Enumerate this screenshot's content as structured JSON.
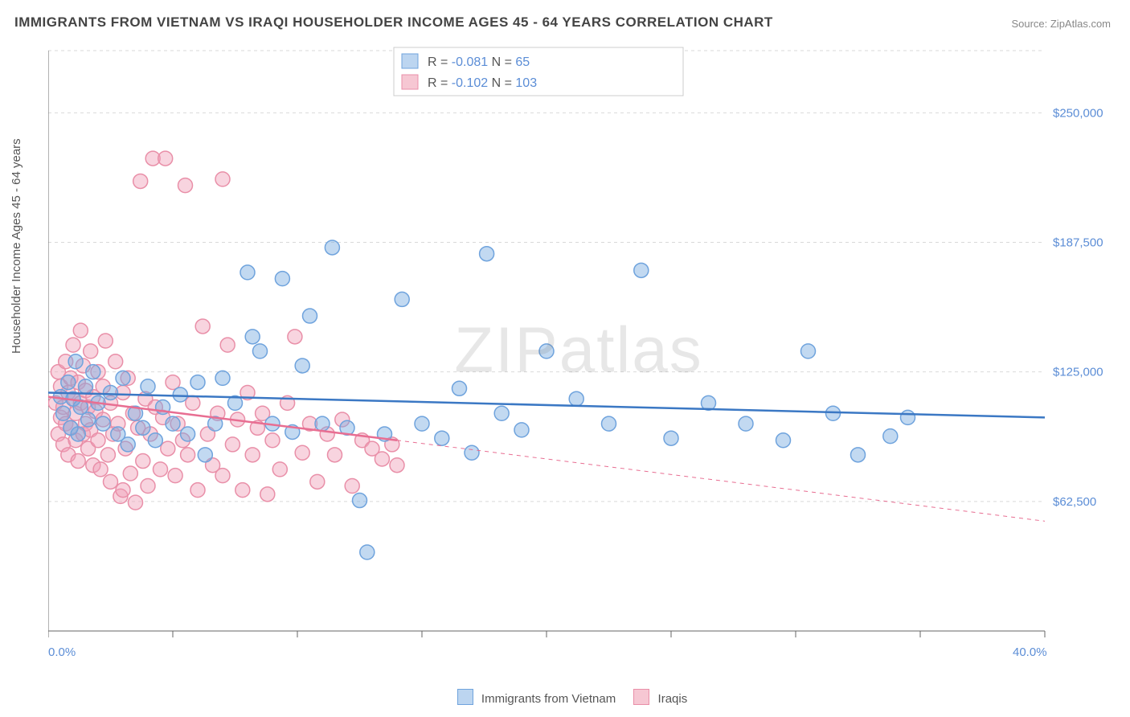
{
  "title": "IMMIGRANTS FROM VIETNAM VS IRAQI HOUSEHOLDER INCOME AGES 45 - 64 YEARS CORRELATION CHART",
  "source": "Source: ZipAtlas.com",
  "watermark": "ZIPatlas",
  "chart": {
    "type": "scatter",
    "background_color": "#ffffff",
    "grid_color": "#d9d9d9",
    "grid_dash": "4,4",
    "axis_color": "#666666",
    "xlim": [
      0,
      40
    ],
    "ylim": [
      0,
      280000
    ],
    "x_ticks": [
      0,
      5,
      10,
      15,
      20,
      25,
      30,
      35,
      40
    ],
    "y_ticks": [
      62500,
      125000,
      187500,
      250000
    ],
    "y_tick_labels": [
      "$62,500",
      "$125,000",
      "$187,500",
      "$250,000"
    ],
    "y_tick_color": "#5b8dd6",
    "x_min_label": "0.0%",
    "x_max_label": "40.0%",
    "x_label_color": "#5b8dd6",
    "ylabel": "Householder Income Ages 45 - 64 years",
    "marker_radius": 9,
    "marker_stroke_width": 1.5,
    "trend_line_width": 2.5,
    "legend_top": {
      "box_fill": "#ffffff",
      "box_stroke": "#cccccc",
      "rows": [
        {
          "swatch_fill": "#bcd5f0",
          "swatch_stroke": "#6fa3dd",
          "r_label": "R =",
          "r_value": "-0.081",
          "n_label": "N =",
          "n_value": "65"
        },
        {
          "swatch_fill": "#f6c7d3",
          "swatch_stroke": "#e98fa8",
          "r_label": "R =",
          "r_value": "-0.102",
          "n_label": "N =",
          "n_value": "103"
        }
      ],
      "text_color": "#555555",
      "value_color": "#5b8dd6"
    },
    "legend_bottom": {
      "items": [
        {
          "swatch_fill": "#bcd5f0",
          "swatch_stroke": "#6fa3dd",
          "label": "Immigrants from Vietnam"
        },
        {
          "swatch_fill": "#f6c7d3",
          "swatch_stroke": "#e98fa8",
          "label": "Iraqis"
        }
      ]
    },
    "series": [
      {
        "name": "Immigrants from Vietnam",
        "color_fill": "rgba(120,170,225,0.45)",
        "color_stroke": "#6fa3dd",
        "trend_color": "#3b78c4",
        "trend": {
          "x1": 0,
          "y1": 115000,
          "x2": 40,
          "y2": 103000
        },
        "points": [
          [
            0.5,
            113000
          ],
          [
            0.6,
            105000
          ],
          [
            0.8,
            120000
          ],
          [
            0.9,
            98000
          ],
          [
            1.0,
            112000
          ],
          [
            1.1,
            130000
          ],
          [
            1.2,
            95000
          ],
          [
            1.3,
            108000
          ],
          [
            1.5,
            118000
          ],
          [
            1.6,
            102000
          ],
          [
            1.8,
            125000
          ],
          [
            2.0,
            110000
          ],
          [
            2.2,
            100000
          ],
          [
            2.5,
            115000
          ],
          [
            2.8,
            95000
          ],
          [
            3.0,
            122000
          ],
          [
            3.2,
            90000
          ],
          [
            3.5,
            105000
          ],
          [
            3.8,
            98000
          ],
          [
            4.0,
            118000
          ],
          [
            4.3,
            92000
          ],
          [
            4.6,
            108000
          ],
          [
            5.0,
            100000
          ],
          [
            5.3,
            114000
          ],
          [
            5.6,
            95000
          ],
          [
            6.0,
            120000
          ],
          [
            6.3,
            85000
          ],
          [
            6.7,
            100000
          ],
          [
            7.0,
            122000
          ],
          [
            7.5,
            110000
          ],
          [
            8.0,
            173000
          ],
          [
            8.2,
            142000
          ],
          [
            8.5,
            135000
          ],
          [
            9.0,
            100000
          ],
          [
            9.4,
            170000
          ],
          [
            9.8,
            96000
          ],
          [
            10.2,
            128000
          ],
          [
            10.5,
            152000
          ],
          [
            11.0,
            100000
          ],
          [
            11.4,
            185000
          ],
          [
            12.0,
            98000
          ],
          [
            12.5,
            63000
          ],
          [
            12.8,
            38000
          ],
          [
            13.5,
            95000
          ],
          [
            14.2,
            160000
          ],
          [
            15.0,
            100000
          ],
          [
            15.8,
            93000
          ],
          [
            16.5,
            117000
          ],
          [
            17.0,
            86000
          ],
          [
            17.6,
            182000
          ],
          [
            18.2,
            105000
          ],
          [
            19.0,
            97000
          ],
          [
            20.0,
            135000
          ],
          [
            21.2,
            112000
          ],
          [
            22.5,
            100000
          ],
          [
            23.8,
            174000
          ],
          [
            25.0,
            93000
          ],
          [
            26.5,
            110000
          ],
          [
            28.0,
            100000
          ],
          [
            29.5,
            92000
          ],
          [
            30.5,
            135000
          ],
          [
            31.5,
            105000
          ],
          [
            32.5,
            85000
          ],
          [
            33.8,
            94000
          ],
          [
            34.5,
            103000
          ]
        ]
      },
      {
        "name": "Iraqis",
        "color_fill": "rgba(240,160,185,0.45)",
        "color_stroke": "#e98fa8",
        "trend_color": "#e86e92",
        "trend": {
          "x1": 0,
          "y1": 113000,
          "x2": 14,
          "y2": 92000
        },
        "trend_ext": {
          "x1": 14,
          "y1": 92000,
          "x2": 40,
          "y2": 53000
        },
        "points": [
          [
            0.3,
            110000
          ],
          [
            0.4,
            95000
          ],
          [
            0.4,
            125000
          ],
          [
            0.5,
            103000
          ],
          [
            0.5,
            118000
          ],
          [
            0.6,
            90000
          ],
          [
            0.6,
            108000
          ],
          [
            0.7,
            130000
          ],
          [
            0.7,
            100000
          ],
          [
            0.8,
            115000
          ],
          [
            0.8,
            85000
          ],
          [
            0.9,
            122000
          ],
          [
            0.9,
            98000
          ],
          [
            1.0,
            112000
          ],
          [
            1.0,
            138000
          ],
          [
            1.1,
            92000
          ],
          [
            1.1,
            105000
          ],
          [
            1.2,
            120000
          ],
          [
            1.2,
            82000
          ],
          [
            1.3,
            110000
          ],
          [
            1.3,
            145000
          ],
          [
            1.4,
            95000
          ],
          [
            1.4,
            128000
          ],
          [
            1.5,
            100000
          ],
          [
            1.5,
            116000
          ],
          [
            1.6,
            88000
          ],
          [
            1.6,
            108000
          ],
          [
            1.7,
            135000
          ],
          [
            1.7,
            97000
          ],
          [
            1.8,
            113000
          ],
          [
            1.8,
            80000
          ],
          [
            1.9,
            106000
          ],
          [
            2.0,
            125000
          ],
          [
            2.0,
            92000
          ],
          [
            2.1,
            78000
          ],
          [
            2.2,
            118000
          ],
          [
            2.2,
            102000
          ],
          [
            2.3,
            140000
          ],
          [
            2.4,
            85000
          ],
          [
            2.5,
            110000
          ],
          [
            2.5,
            72000
          ],
          [
            2.6,
            95000
          ],
          [
            2.7,
            130000
          ],
          [
            2.8,
            100000
          ],
          [
            2.9,
            65000
          ],
          [
            3.0,
            115000
          ],
          [
            3.0,
            68000
          ],
          [
            3.1,
            88000
          ],
          [
            3.2,
            122000
          ],
          [
            3.3,
            76000
          ],
          [
            3.4,
            105000
          ],
          [
            3.5,
            62000
          ],
          [
            3.6,
            98000
          ],
          [
            3.7,
            217000
          ],
          [
            3.8,
            82000
          ],
          [
            3.9,
            112000
          ],
          [
            4.0,
            70000
          ],
          [
            4.1,
            95000
          ],
          [
            4.2,
            228000
          ],
          [
            4.3,
            108000
          ],
          [
            4.5,
            78000
          ],
          [
            4.6,
            103000
          ],
          [
            4.7,
            228000
          ],
          [
            4.8,
            88000
          ],
          [
            5.0,
            120000
          ],
          [
            5.1,
            75000
          ],
          [
            5.2,
            100000
          ],
          [
            5.4,
            92000
          ],
          [
            5.5,
            215000
          ],
          [
            5.6,
            85000
          ],
          [
            5.8,
            110000
          ],
          [
            6.0,
            68000
          ],
          [
            6.2,
            147000
          ],
          [
            6.4,
            95000
          ],
          [
            6.6,
            80000
          ],
          [
            6.8,
            105000
          ],
          [
            7.0,
            218000
          ],
          [
            7.0,
            75000
          ],
          [
            7.2,
            138000
          ],
          [
            7.4,
            90000
          ],
          [
            7.6,
            102000
          ],
          [
            7.8,
            68000
          ],
          [
            8.0,
            115000
          ],
          [
            8.2,
            85000
          ],
          [
            8.4,
            98000
          ],
          [
            8.6,
            105000
          ],
          [
            8.8,
            66000
          ],
          [
            9.0,
            92000
          ],
          [
            9.3,
            78000
          ],
          [
            9.6,
            110000
          ],
          [
            9.9,
            142000
          ],
          [
            10.2,
            86000
          ],
          [
            10.5,
            100000
          ],
          [
            10.8,
            72000
          ],
          [
            11.2,
            95000
          ],
          [
            11.5,
            85000
          ],
          [
            11.8,
            102000
          ],
          [
            12.2,
            70000
          ],
          [
            12.6,
            92000
          ],
          [
            13.0,
            88000
          ],
          [
            13.4,
            83000
          ],
          [
            13.8,
            90000
          ],
          [
            14.0,
            80000
          ]
        ]
      }
    ]
  }
}
